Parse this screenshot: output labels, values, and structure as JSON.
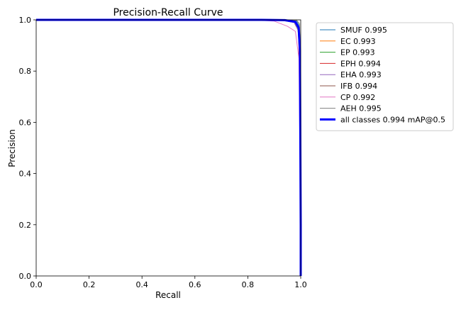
{
  "chart_data": {
    "type": "line",
    "title": "Precision-Recall Curve",
    "xlabel": "Recall",
    "ylabel": "Precision",
    "xlim": [
      0,
      1
    ],
    "ylim": [
      0,
      1
    ],
    "xticks": [
      "0.0",
      "0.2",
      "0.4",
      "0.6",
      "0.8",
      "1.0"
    ],
    "yticks": [
      "0.0",
      "0.2",
      "0.4",
      "0.6",
      "0.8",
      "1.0"
    ],
    "grid": false,
    "legend_position": "outside-right",
    "series": [
      {
        "name": "SMUF 0.995",
        "color": "#1f77b4",
        "width": 1,
        "x": [
          0,
          0.85,
          0.95,
          0.985,
          0.995,
          0.998,
          1.0,
          1.0
        ],
        "y": [
          1,
          1,
          0.999,
          0.995,
          0.975,
          0.9,
          0.2,
          0
        ]
      },
      {
        "name": "EC 0.993",
        "color": "#ff7f0e",
        "width": 1,
        "x": [
          0,
          0.85,
          0.93,
          0.975,
          0.99,
          0.996,
          1.0,
          1.0
        ],
        "y": [
          1,
          1,
          0.998,
          0.99,
          0.96,
          0.85,
          0.2,
          0
        ]
      },
      {
        "name": "EP 0.993",
        "color": "#2ca02c",
        "width": 1,
        "x": [
          0,
          0.85,
          0.93,
          0.975,
          0.99,
          0.996,
          1.0,
          1.0
        ],
        "y": [
          1,
          1,
          0.998,
          0.99,
          0.965,
          0.88,
          0.2,
          0
        ]
      },
      {
        "name": "EPH 0.994",
        "color": "#d62728",
        "width": 1,
        "x": [
          0,
          0.85,
          0.94,
          0.98,
          0.992,
          0.997,
          1.0,
          1.0
        ],
        "y": [
          1,
          1,
          0.999,
          0.99,
          0.97,
          0.6,
          0.2,
          0
        ]
      },
      {
        "name": "EHA 0.993",
        "color": "#9467bd",
        "width": 1,
        "x": [
          0,
          0.85,
          0.93,
          0.975,
          0.99,
          0.996,
          1.0,
          1.0
        ],
        "y": [
          1,
          1,
          0.998,
          0.99,
          0.96,
          0.87,
          0.2,
          0
        ]
      },
      {
        "name": "IFB 0.994",
        "color": "#8c564b",
        "width": 1,
        "x": [
          0,
          0.85,
          0.94,
          0.98,
          0.992,
          0.997,
          1.0,
          1.0
        ],
        "y": [
          1,
          1,
          0.999,
          0.992,
          0.97,
          0.89,
          0.2,
          0
        ]
      },
      {
        "name": "CP 0.992",
        "color": "#e377c2",
        "width": 1,
        "x": [
          0,
          0.82,
          0.9,
          0.95,
          0.98,
          0.993,
          1.0,
          1.0
        ],
        "y": [
          1,
          1,
          0.995,
          0.975,
          0.955,
          0.85,
          0.2,
          0
        ]
      },
      {
        "name": "AEH 0.995",
        "color": "#7f7f7f",
        "width": 1,
        "x": [
          0,
          0.85,
          0.95,
          0.985,
          0.995,
          0.998,
          1.0,
          1.0
        ],
        "y": [
          1,
          1,
          0.999,
          0.998,
          0.985,
          0.92,
          0.2,
          0
        ]
      },
      {
        "name": "all classes 0.994 mAP@0.5",
        "color": "#0000ff",
        "width": 3,
        "x": [
          0,
          0.85,
          0.94,
          0.98,
          0.992,
          0.997,
          1.0,
          1.0
        ],
        "y": [
          1,
          1,
          0.999,
          0.992,
          0.97,
          0.88,
          0.2,
          0
        ]
      }
    ]
  }
}
